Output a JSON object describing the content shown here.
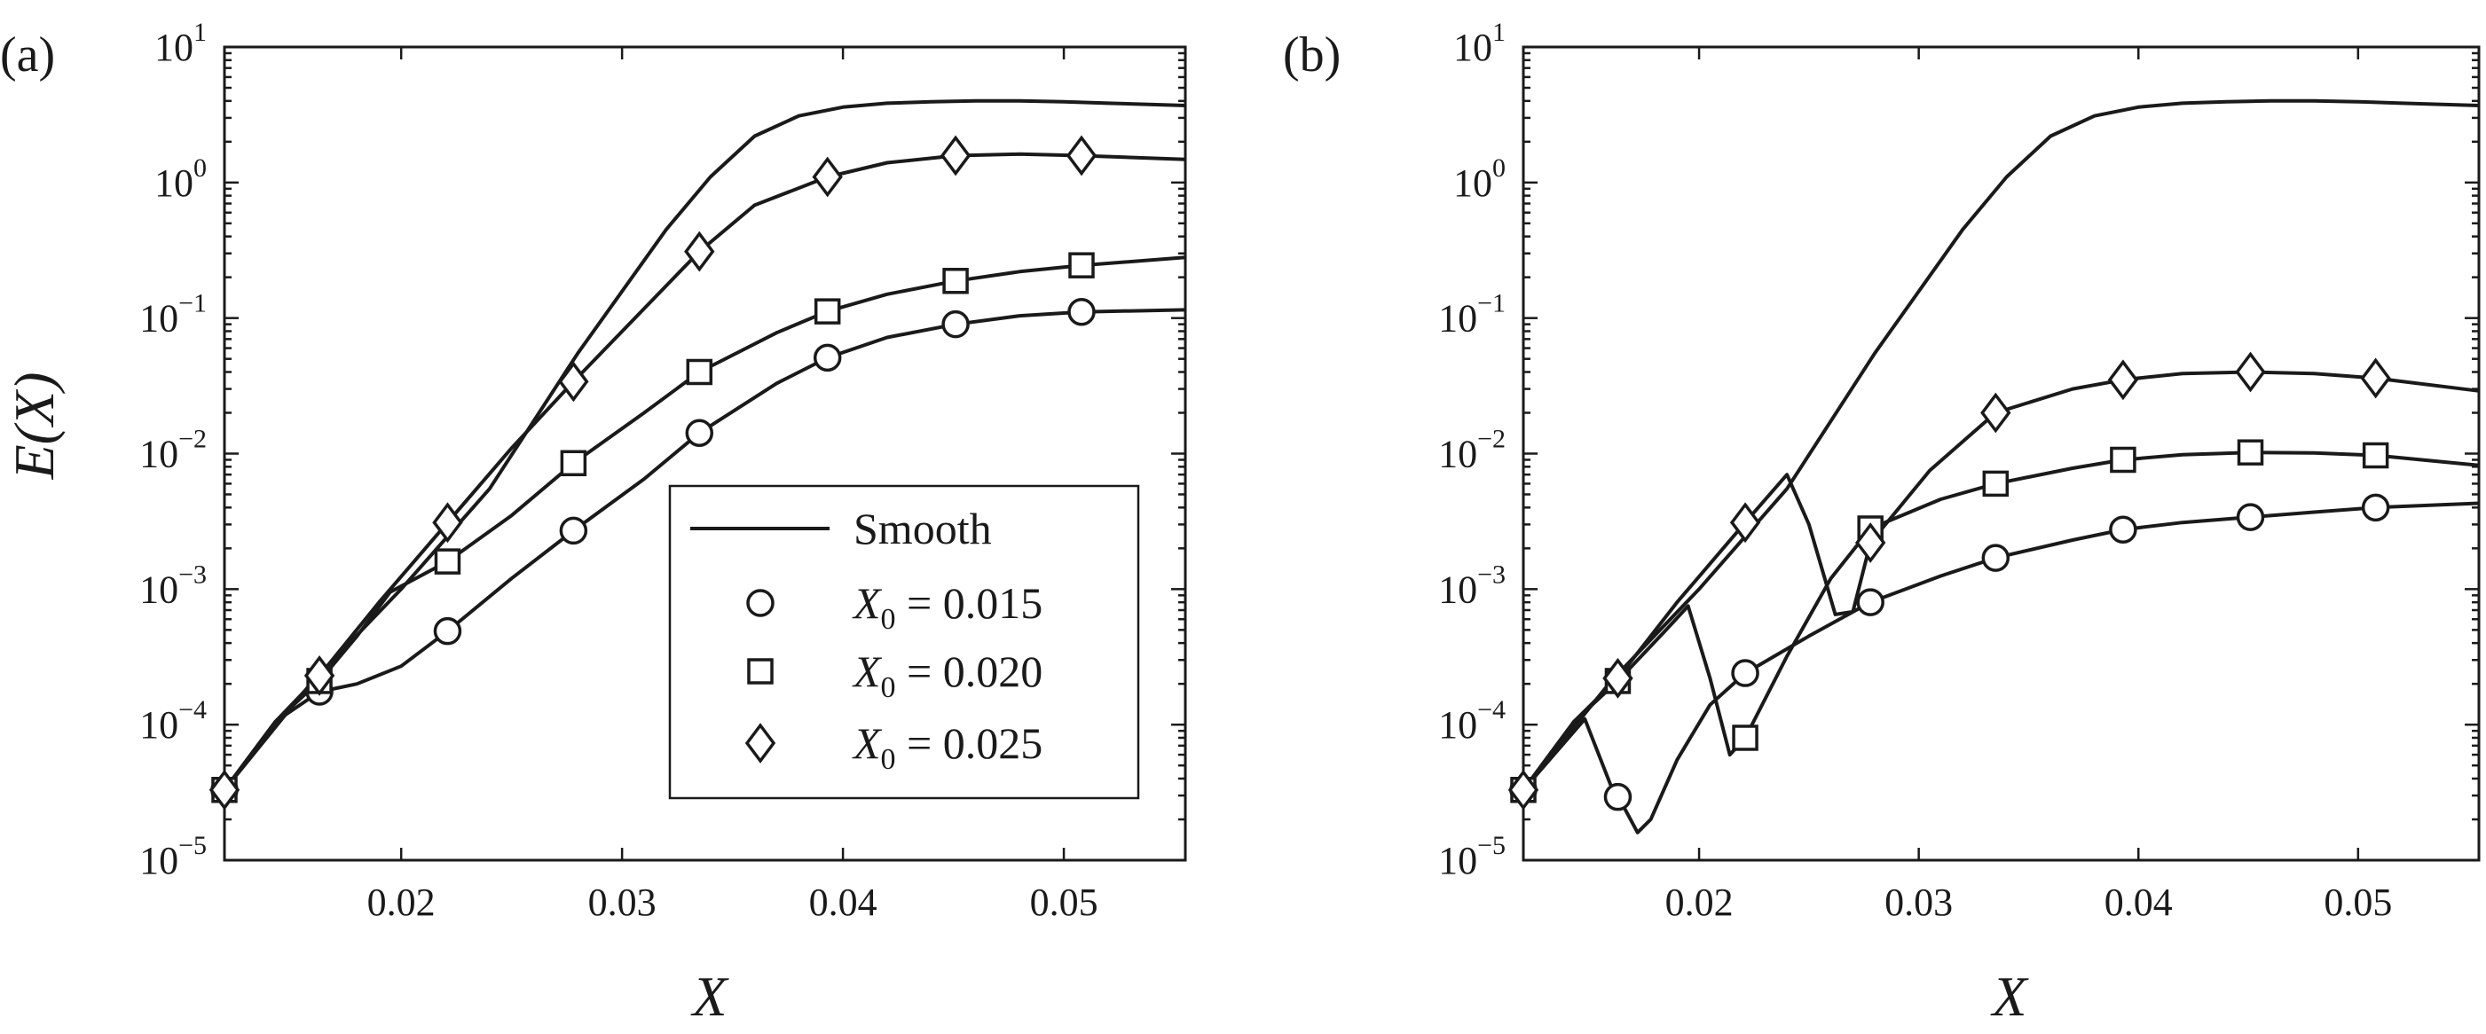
{
  "figure": {
    "ylabel": "E(X)",
    "legend": {
      "smooth_label": "Smooth",
      "entries": [
        {
          "prefix": "X",
          "sub": "0",
          "text": " = 0.015",
          "marker": "circle"
        },
        {
          "prefix": "X",
          "sub": "0",
          "text": " = 0.020",
          "marker": "square"
        },
        {
          "prefix": "X",
          "sub": "0",
          "text": " = 0.025",
          "marker": "diamond"
        }
      ]
    }
  },
  "chart_data": [
    {
      "type": "line",
      "panel": "(a)",
      "xlabel": "X",
      "ylabel": "E(X)",
      "yscale": "log",
      "xlim": [
        0.012,
        0.0555
      ],
      "ylim": [
        1e-05,
        10
      ],
      "xticks": [
        0.02,
        0.03,
        0.04,
        0.05
      ],
      "xtick_labels": [
        "0.02",
        "0.03",
        "0.04",
        "0.05"
      ],
      "yticks": [
        {
          "base": "10",
          "exp": "−5"
        },
        {
          "base": "10",
          "exp": "−4"
        },
        {
          "base": "10",
          "exp": "−3"
        },
        {
          "base": "10",
          "exp": "−2"
        },
        {
          "base": "10",
          "exp": "−1"
        },
        {
          "base": "10",
          "exp": "0"
        },
        {
          "base": "10",
          "exp": "1"
        }
      ],
      "legend_location": "lower-right",
      "series": [
        {
          "name": "Smooth",
          "marker": "none",
          "x": [
            0.012,
            0.016,
            0.02,
            0.024,
            0.028,
            0.032,
            0.034,
            0.036,
            0.038,
            0.04,
            0.042,
            0.044,
            0.046,
            0.048,
            0.05,
            0.052,
            0.0555
          ],
          "y": [
            3.3e-05,
            0.00021,
            0.001,
            0.0055,
            0.055,
            0.45,
            1.1,
            2.2,
            3.1,
            3.6,
            3.85,
            3.95,
            4.0,
            4.0,
            3.95,
            3.85,
            3.7
          ]
        },
        {
          "name": "X0 = 0.015",
          "marker": "circle",
          "x": [
            0.012,
            0.0143,
            0.0163,
            0.018,
            0.02,
            0.0221,
            0.025,
            0.0278,
            0.031,
            0.0335,
            0.037,
            0.0393,
            0.042,
            0.0451,
            0.048,
            0.0508,
            0.0555
          ],
          "y": [
            3.3e-05,
            0.000105,
            0.000175,
            0.0002,
            0.00027,
            0.00049,
            0.0012,
            0.0027,
            0.0065,
            0.0142,
            0.033,
            0.051,
            0.072,
            0.09,
            0.104,
            0.111,
            0.115
          ]
        },
        {
          "name": "X0 = 0.020",
          "marker": "square",
          "x": [
            0.012,
            0.0143,
            0.0163,
            0.018,
            0.0195,
            0.0221,
            0.025,
            0.0278,
            0.031,
            0.0335,
            0.037,
            0.0393,
            0.042,
            0.0451,
            0.048,
            0.0508,
            0.0555
          ],
          "y": [
            3.3e-05,
            0.000105,
            0.00021,
            0.00045,
            0.00095,
            0.0016,
            0.0035,
            0.0085,
            0.02,
            0.04,
            0.078,
            0.112,
            0.15,
            0.188,
            0.22,
            0.245,
            0.28
          ]
        },
        {
          "name": "X0 = 0.025",
          "marker": "diamond",
          "x": [
            0.012,
            0.0143,
            0.0163,
            0.019,
            0.0221,
            0.025,
            0.0278,
            0.0335,
            0.036,
            0.0393,
            0.042,
            0.0451,
            0.048,
            0.0508,
            0.0555
          ],
          "y": [
            3.3e-05,
            0.000105,
            0.00023,
            0.0008,
            0.0031,
            0.011,
            0.034,
            0.31,
            0.68,
            1.1,
            1.4,
            1.58,
            1.62,
            1.58,
            1.48
          ]
        }
      ],
      "marker_x": [
        0.012,
        0.0163,
        0.0221,
        0.0278,
        0.0335,
        0.0393,
        0.0451,
        0.0508
      ]
    },
    {
      "type": "line",
      "panel": "(b)",
      "xlabel": "X",
      "ylabel": "",
      "yscale": "log",
      "xlim": [
        0.012,
        0.0555
      ],
      "ylim": [
        1e-05,
        10
      ],
      "xticks": [
        0.02,
        0.03,
        0.04,
        0.05
      ],
      "xtick_labels": [
        "0.02",
        "0.03",
        "0.04",
        "0.05"
      ],
      "yticks": [
        {
          "base": "10",
          "exp": "−5"
        },
        {
          "base": "10",
          "exp": "−4"
        },
        {
          "base": "10",
          "exp": "−3"
        },
        {
          "base": "10",
          "exp": "−2"
        },
        {
          "base": "10",
          "exp": "−1"
        },
        {
          "base": "10",
          "exp": "0"
        },
        {
          "base": "10",
          "exp": "1"
        }
      ],
      "series": [
        {
          "name": "Smooth",
          "marker": "none",
          "x": [
            0.012,
            0.016,
            0.02,
            0.024,
            0.028,
            0.032,
            0.034,
            0.036,
            0.038,
            0.04,
            0.042,
            0.044,
            0.046,
            0.048,
            0.05,
            0.052,
            0.0555
          ],
          "y": [
            3.3e-05,
            0.00021,
            0.001,
            0.0055,
            0.055,
            0.45,
            1.1,
            2.2,
            3.1,
            3.6,
            3.85,
            3.95,
            4.0,
            4.0,
            3.95,
            3.85,
            3.7
          ]
        },
        {
          "name": "X0 = 0.015",
          "marker": "circle",
          "x": [
            0.012,
            0.0148,
            0.016,
            0.0165,
            0.0172,
            0.0178,
            0.019,
            0.0205,
            0.0221,
            0.025,
            0.0278,
            0.031,
            0.0335,
            0.037,
            0.0393,
            0.042,
            0.0451,
            0.048,
            0.0508,
            0.0555
          ],
          "y": [
            3.3e-05,
            0.00011,
            3.5e-05,
            2.6e-05,
            1.6e-05,
            2e-05,
            5.5e-05,
            0.00014,
            0.00024,
            0.00045,
            0.0008,
            0.00125,
            0.0017,
            0.0023,
            0.00275,
            0.0031,
            0.0034,
            0.0037,
            0.004,
            0.0043
          ]
        },
        {
          "name": "X0 = 0.020",
          "marker": "square",
          "x": [
            0.012,
            0.0143,
            0.0163,
            0.0185,
            0.0195,
            0.0205,
            0.0214,
            0.0221,
            0.024,
            0.026,
            0.0278,
            0.031,
            0.0335,
            0.037,
            0.0393,
            0.042,
            0.0451,
            0.048,
            0.0508,
            0.0555
          ],
          "y": [
            3.3e-05,
            0.000105,
            0.00021,
            0.0005,
            0.00075,
            0.00022,
            6e-05,
            8e-05,
            0.00032,
            0.0012,
            0.0028,
            0.0046,
            0.006,
            0.0078,
            0.009,
            0.0098,
            0.0102,
            0.0101,
            0.0097,
            0.0082
          ]
        },
        {
          "name": "X0 = 0.025",
          "marker": "diamond",
          "x": [
            0.012,
            0.0143,
            0.0163,
            0.019,
            0.0221,
            0.024,
            0.025,
            0.0262,
            0.027,
            0.0278,
            0.0305,
            0.0335,
            0.037,
            0.0393,
            0.042,
            0.0451,
            0.048,
            0.0508,
            0.0555
          ],
          "y": [
            3.3e-05,
            0.000105,
            0.00022,
            0.0008,
            0.0031,
            0.007,
            0.003,
            0.00065,
            0.00068,
            0.0022,
            0.0075,
            0.02,
            0.03,
            0.035,
            0.039,
            0.04,
            0.039,
            0.036,
            0.029
          ]
        }
      ],
      "marker_x": [
        0.012,
        0.0163,
        0.0221,
        0.0278,
        0.0335,
        0.0393,
        0.0451,
        0.0508
      ]
    }
  ]
}
